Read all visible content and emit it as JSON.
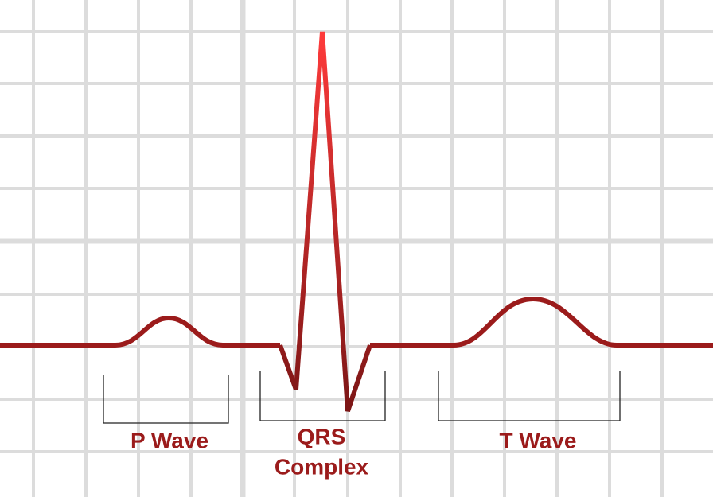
{
  "waves": [
    {
      "lines": [
        "P Wave"
      ]
    },
    {
      "lines": [
        "QRS",
        "Complex"
      ]
    },
    {
      "lines": [
        "T Wave"
      ]
    }
  ]
}
